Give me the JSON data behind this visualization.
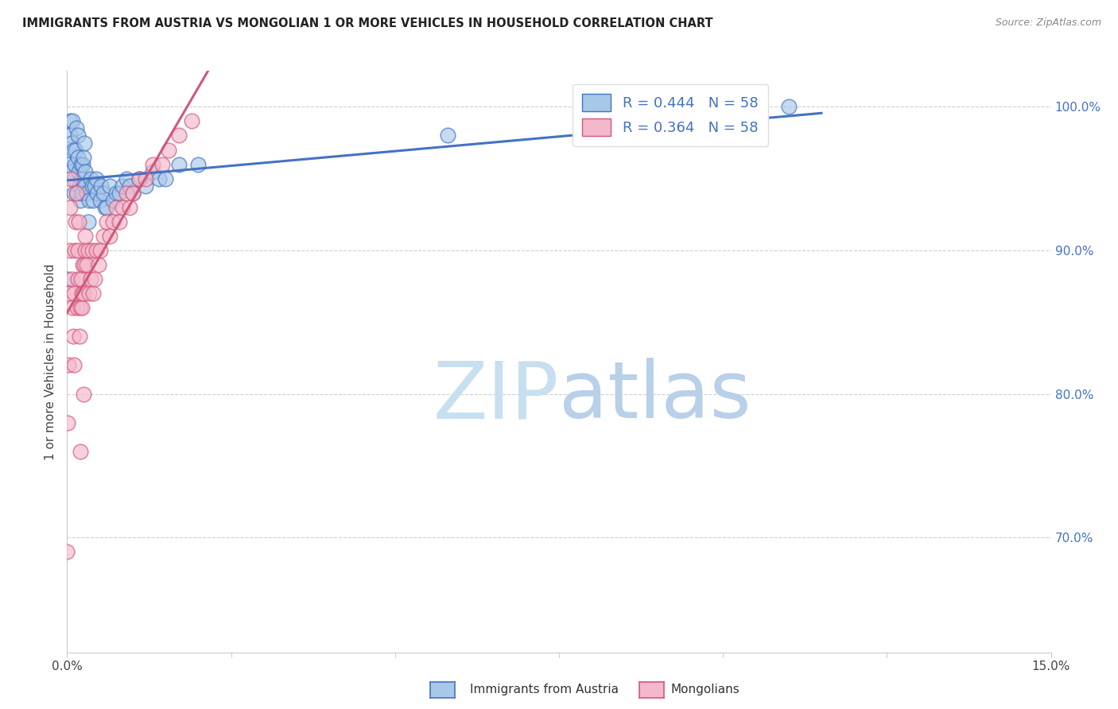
{
  "title": "IMMIGRANTS FROM AUSTRIA VS MONGOLIAN 1 OR MORE VEHICLES IN HOUSEHOLD CORRELATION CHART",
  "source": "Source: ZipAtlas.com",
  "ylabel": "1 or more Vehicles in Household",
  "R_austria": 0.444,
  "N_austria": 58,
  "R_mongolian": 0.364,
  "N_mongolian": 58,
  "austria_color": "#a8c8e8",
  "mongolian_color": "#f4b8cc",
  "austria_line_color": "#4472c4",
  "mongolian_line_color": "#d05878",
  "legend_austria": "Immigrants from Austria",
  "legend_mongolian": "Mongolians",
  "austria_x": [
    0.0,
    0.0002,
    0.0004,
    0.0005,
    0.0006,
    0.0007,
    0.0008,
    0.0009,
    0.001,
    0.0011,
    0.0012,
    0.0013,
    0.0014,
    0.0015,
    0.0016,
    0.0017,
    0.0018,
    0.0019,
    0.002,
    0.0021,
    0.0022,
    0.0023,
    0.0024,
    0.0025,
    0.0026,
    0.0027,
    0.0028,
    0.003,
    0.0032,
    0.0034,
    0.0036,
    0.0038,
    0.004,
    0.0042,
    0.0044,
    0.0046,
    0.005,
    0.0052,
    0.0055,
    0.0058,
    0.006,
    0.0065,
    0.007,
    0.0075,
    0.008,
    0.0085,
    0.009,
    0.0095,
    0.01,
    0.011,
    0.012,
    0.013,
    0.014,
    0.015,
    0.017,
    0.02,
    0.058,
    0.11
  ],
  "austria_y": [
    0.88,
    0.96,
    0.99,
    0.98,
    0.955,
    0.975,
    0.99,
    0.97,
    0.95,
    0.94,
    0.96,
    0.97,
    0.985,
    0.94,
    0.98,
    0.965,
    0.955,
    0.945,
    0.935,
    0.96,
    0.95,
    0.94,
    0.96,
    0.965,
    0.975,
    0.955,
    0.945,
    0.94,
    0.92,
    0.935,
    0.95,
    0.945,
    0.935,
    0.945,
    0.95,
    0.94,
    0.935,
    0.945,
    0.94,
    0.93,
    0.93,
    0.945,
    0.935,
    0.94,
    0.94,
    0.945,
    0.95,
    0.945,
    0.94,
    0.95,
    0.945,
    0.955,
    0.95,
    0.95,
    0.96,
    0.96,
    0.98,
    1.0
  ],
  "mongolian_x": [
    0.0,
    0.0001,
    0.0002,
    0.0003,
    0.0004,
    0.0005,
    0.0006,
    0.0007,
    0.0008,
    0.0009,
    0.001,
    0.0011,
    0.0012,
    0.0013,
    0.0014,
    0.0015,
    0.0016,
    0.0017,
    0.0018,
    0.0019,
    0.002,
    0.0021,
    0.0022,
    0.0023,
    0.0024,
    0.0025,
    0.0026,
    0.0027,
    0.0028,
    0.003,
    0.0032,
    0.0034,
    0.0036,
    0.0038,
    0.004,
    0.0042,
    0.0045,
    0.0048,
    0.005,
    0.0055,
    0.006,
    0.0065,
    0.007,
    0.0075,
    0.008,
    0.0085,
    0.009,
    0.0095,
    0.01,
    0.011,
    0.012,
    0.013,
    0.0145,
    0.0155,
    0.017,
    0.019,
    0.002,
    0.0025
  ],
  "mongolian_y": [
    0.69,
    0.78,
    0.82,
    0.87,
    0.9,
    0.93,
    0.95,
    0.88,
    0.86,
    0.84,
    0.82,
    0.87,
    0.9,
    0.92,
    0.94,
    0.86,
    0.88,
    0.9,
    0.92,
    0.84,
    0.86,
    0.88,
    0.86,
    0.87,
    0.89,
    0.87,
    0.89,
    0.9,
    0.91,
    0.89,
    0.9,
    0.87,
    0.88,
    0.9,
    0.87,
    0.88,
    0.9,
    0.89,
    0.9,
    0.91,
    0.92,
    0.91,
    0.92,
    0.93,
    0.92,
    0.93,
    0.94,
    0.93,
    0.94,
    0.95,
    0.95,
    0.96,
    0.96,
    0.97,
    0.98,
    0.99,
    0.76,
    0.8
  ],
  "xmin": 0.0,
  "xmax": 0.15,
  "ymin": 0.62,
  "ymax": 1.025,
  "background_color": "#ffffff",
  "grid_color": "#bbbbbb",
  "watermark_zip": "ZIP",
  "watermark_atlas": "atlas",
  "watermark_color_zip": "#c8dff0",
  "watermark_color_atlas": "#b8d0e8"
}
